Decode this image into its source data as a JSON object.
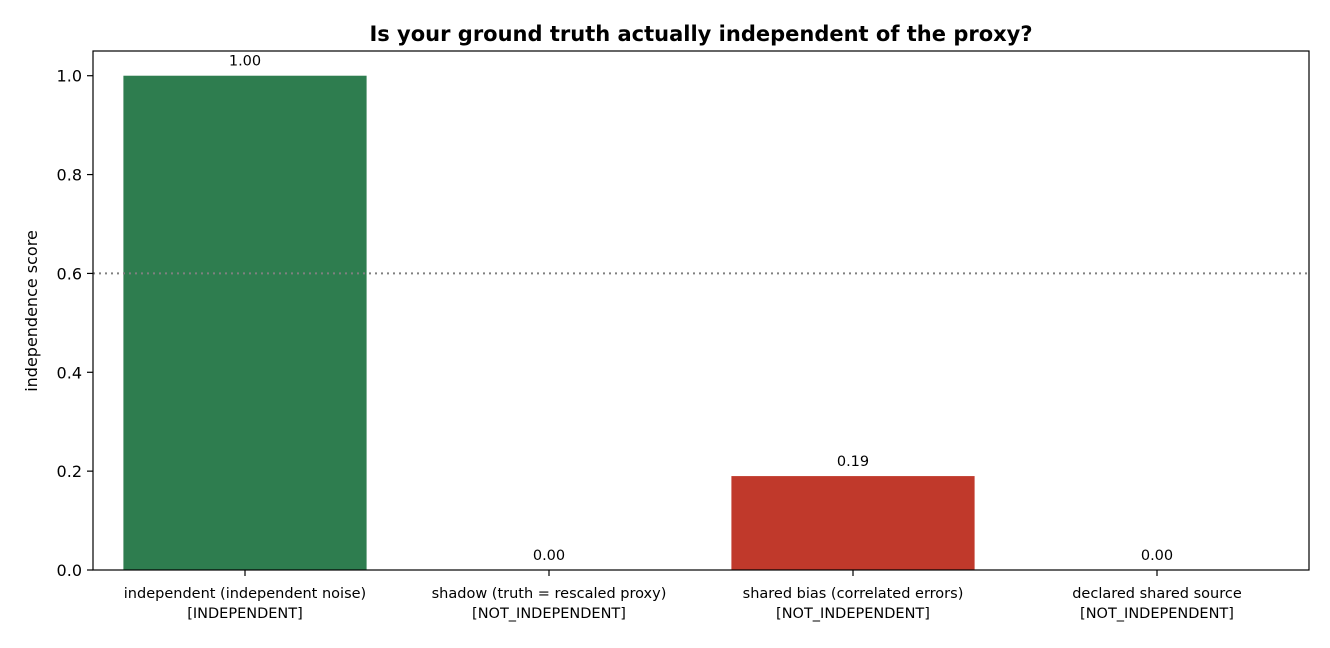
{
  "chart_data": {
    "type": "bar",
    "title": "Is your ground truth actually independent of the proxy?",
    "xlabel": "",
    "ylabel": "independence score",
    "ylim": [
      0,
      1.05
    ],
    "yticks": [
      "0.0",
      "0.2",
      "0.4",
      "0.6",
      "0.8",
      "1.0"
    ],
    "ytick_values": [
      0,
      0.2,
      0.4,
      0.6,
      0.8,
      1.0
    ],
    "categories": [
      {
        "line1": "independent (independent noise)",
        "line2": "[INDEPENDENT]"
      },
      {
        "line1": "shadow (truth = rescaled proxy)",
        "line2": "[NOT_INDEPENDENT]"
      },
      {
        "line1": "shared bias (correlated errors)",
        "line2": "[NOT_INDEPENDENT]"
      },
      {
        "line1": "declared shared source",
        "line2": "[NOT_INDEPENDENT]"
      }
    ],
    "values": [
      1.0,
      0.0,
      0.19,
      0.0
    ],
    "value_labels": [
      "1.00",
      "0.00",
      "0.19",
      "0.00"
    ],
    "bar_colors": [
      "#2e7d4f",
      "#c0392b",
      "#c0392b",
      "#c0392b"
    ],
    "threshold": 0.6,
    "threshold_color": "#808080",
    "grid": false
  }
}
